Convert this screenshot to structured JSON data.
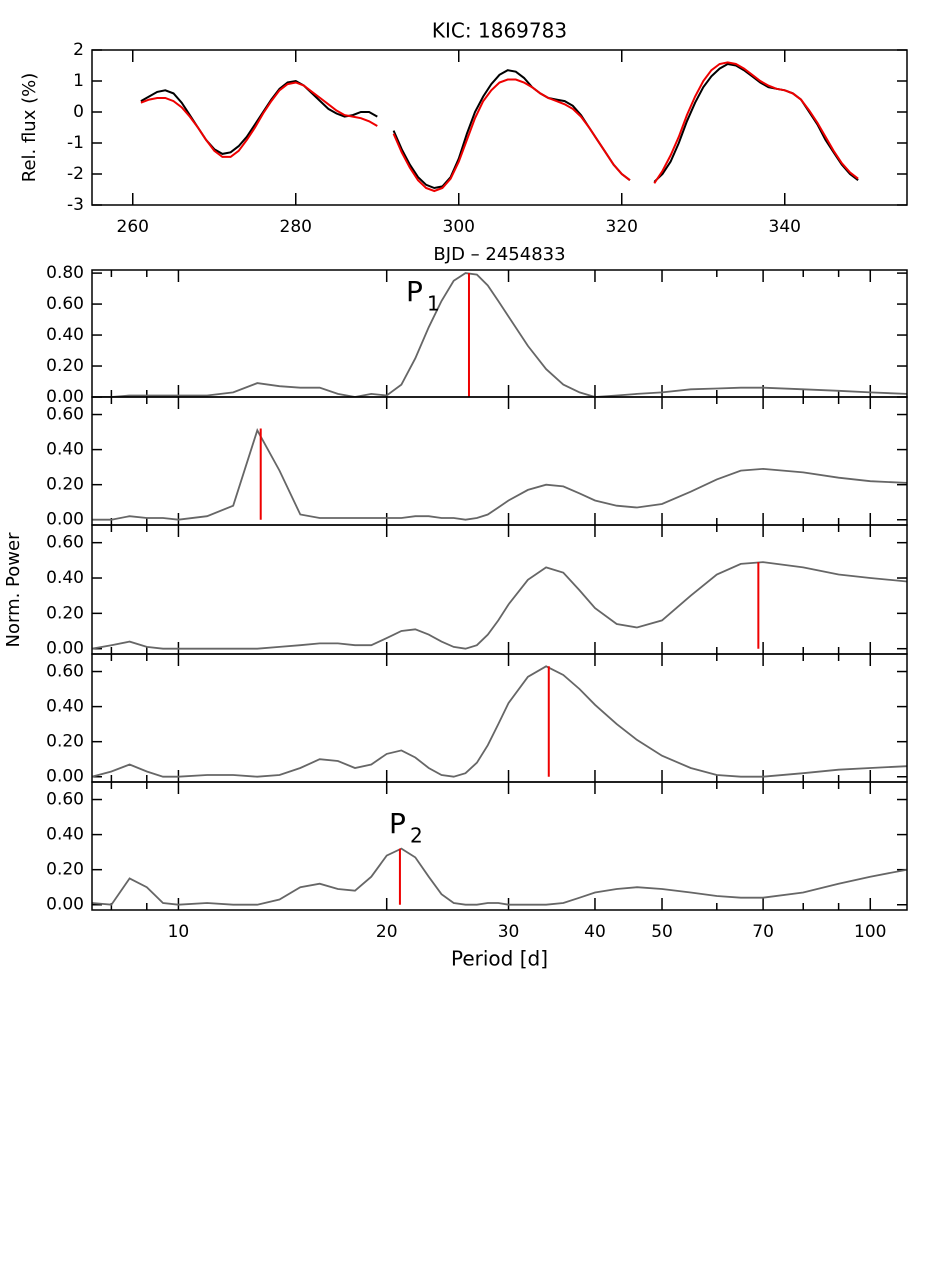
{
  "chart_data": [
    {
      "type": "line",
      "title": "KIC: 1869783",
      "xlabel": "BJD – 2454833",
      "ylabel": "Rel. flux (%)",
      "xlim": [
        255,
        355
      ],
      "xticks": [
        260,
        280,
        300,
        320,
        340
      ],
      "ylim": [
        -3,
        2
      ],
      "yticks": [
        -3,
        -2,
        -1,
        0,
        1,
        2
      ],
      "x": [
        261,
        262,
        263,
        264,
        265,
        266,
        267,
        268,
        269,
        270,
        271,
        272,
        273,
        274,
        275,
        276,
        277,
        278,
        279,
        280,
        281,
        282,
        283,
        284,
        285,
        286,
        287,
        288,
        289,
        290,
        291,
        292,
        293,
        294,
        295,
        296,
        297,
        298,
        299,
        300,
        301,
        302,
        303,
        304,
        305,
        306,
        307,
        308,
        309,
        310,
        311,
        312,
        313,
        314,
        315,
        316,
        317,
        318,
        319,
        320,
        321,
        322,
        323,
        324,
        325,
        326,
        327,
        328,
        329,
        330,
        331,
        332,
        333,
        334,
        335,
        336,
        337,
        338,
        339,
        340,
        341,
        342,
        343,
        344,
        345,
        346,
        347,
        348,
        349
      ],
      "series": [
        {
          "color": "#000000",
          "values": [
            0.35,
            0.5,
            0.65,
            0.7,
            0.6,
            0.3,
            -0.1,
            -0.5,
            -0.9,
            -1.2,
            -1.35,
            -1.3,
            -1.1,
            -0.8,
            -0.4,
            0.0,
            0.4,
            0.75,
            0.95,
            1.0,
            0.85,
            0.6,
            0.35,
            0.1,
            -0.05,
            -0.15,
            -0.1,
            0.0,
            0.0,
            -0.15,
            null,
            -0.6,
            -1.2,
            -1.7,
            -2.1,
            -2.35,
            -2.45,
            -2.4,
            -2.1,
            -1.5,
            -0.7,
            0.0,
            0.5,
            0.9,
            1.2,
            1.35,
            1.3,
            1.1,
            0.8,
            0.6,
            0.45,
            0.4,
            0.35,
            0.2,
            -0.1,
            -0.5,
            -0.9,
            -1.3,
            -1.7,
            -2.0,
            -2.2,
            null,
            null,
            -2.25,
            -2.0,
            -1.6,
            -1.0,
            -0.3,
            0.3,
            0.8,
            1.15,
            1.4,
            1.55,
            1.5,
            1.35,
            1.15,
            0.95,
            0.8,
            0.75,
            0.7,
            0.6,
            0.4,
            0.0,
            -0.4,
            -0.9,
            -1.3,
            -1.7,
            -2.0,
            -2.2
          ]
        },
        {
          "color": "#ee0000",
          "values": [
            0.3,
            0.4,
            0.45,
            0.45,
            0.35,
            0.15,
            -0.15,
            -0.5,
            -0.9,
            -1.25,
            -1.45,
            -1.45,
            -1.25,
            -0.9,
            -0.5,
            -0.05,
            0.35,
            0.7,
            0.9,
            0.95,
            0.85,
            0.65,
            0.45,
            0.25,
            0.05,
            -0.1,
            -0.15,
            -0.2,
            -0.3,
            -0.45,
            null,
            -0.7,
            -1.3,
            -1.8,
            -2.2,
            -2.45,
            -2.55,
            -2.45,
            -2.15,
            -1.6,
            -0.9,
            -0.2,
            0.35,
            0.7,
            0.95,
            1.05,
            1.05,
            0.95,
            0.8,
            0.6,
            0.45,
            0.35,
            0.25,
            0.1,
            -0.15,
            -0.5,
            -0.9,
            -1.3,
            -1.7,
            -2.0,
            -2.2,
            null,
            null,
            -2.3,
            -1.9,
            -1.4,
            -0.8,
            -0.1,
            0.5,
            1.0,
            1.35,
            1.55,
            1.6,
            1.55,
            1.4,
            1.2,
            1.0,
            0.85,
            0.75,
            0.7,
            0.6,
            0.4,
            0.05,
            -0.35,
            -0.8,
            -1.25,
            -1.65,
            -1.95,
            -2.15
          ]
        }
      ]
    },
    {
      "type": "line",
      "xlog": true,
      "xlim": [
        7.5,
        113
      ],
      "ylim": [
        0,
        0.82
      ],
      "yticks": [
        {
          "value": 0,
          "label": "0.00"
        },
        {
          "value": 0.2,
          "label": "0.20"
        },
        {
          "value": 0.4,
          "label": "0.40"
        },
        {
          "value": 0.6,
          "label": "0.60"
        },
        {
          "value": 0.8,
          "label": "0.80"
        }
      ],
      "annotation": {
        "text": "P",
        "subscript": "1"
      },
      "peak": {
        "x": 26.3,
        "y": 0.8,
        "color": "#ee0000"
      },
      "x": [
        7.5,
        8,
        8.5,
        9,
        9.5,
        10,
        11,
        12,
        13,
        14,
        15,
        16,
        17,
        18,
        19,
        20,
        21,
        22,
        23,
        24,
        25,
        26,
        27,
        28,
        29,
        30,
        32,
        34,
        36,
        38,
        40,
        43,
        46,
        50,
        55,
        60,
        65,
        70,
        80,
        90,
        100,
        113
      ],
      "series": [
        {
          "color": "#666666",
          "values": [
            0,
            0,
            0.01,
            0.01,
            0.01,
            0.01,
            0.01,
            0.03,
            0.09,
            0.07,
            0.06,
            0.06,
            0.02,
            0.0,
            0.02,
            0.01,
            0.08,
            0.25,
            0.45,
            0.62,
            0.75,
            0.8,
            0.79,
            0.72,
            0.62,
            0.52,
            0.33,
            0.18,
            0.08,
            0.03,
            0.0,
            0.01,
            0.02,
            0.03,
            0.05,
            0.055,
            0.06,
            0.06,
            0.05,
            0.04,
            0.03,
            0.02
          ]
        }
      ]
    },
    {
      "type": "line",
      "xlog": true,
      "xlim": [
        7.5,
        113
      ],
      "ylim": [
        -0.03,
        0.7
      ],
      "yticks": [
        {
          "value": 0,
          "label": "0.00"
        },
        {
          "value": 0.2,
          "label": "0.20"
        },
        {
          "value": 0.4,
          "label": "0.40"
        },
        {
          "value": 0.6,
          "label": "0.60"
        }
      ],
      "peak": {
        "x": 13.15,
        "y": 0.52,
        "color": "#ee0000"
      },
      "x": [
        7.5,
        8,
        8.5,
        9,
        9.5,
        10,
        11,
        12,
        13,
        14,
        15,
        16,
        17,
        18,
        19,
        20,
        21,
        22,
        23,
        24,
        25,
        26,
        27,
        28,
        29,
        30,
        32,
        34,
        36,
        38,
        40,
        43,
        46,
        50,
        55,
        60,
        65,
        70,
        80,
        90,
        100,
        113
      ],
      "series": [
        {
          "color": "#666666",
          "values": [
            0,
            0,
            0.02,
            0.01,
            0.01,
            0,
            0.02,
            0.08,
            0.51,
            0.28,
            0.03,
            0.01,
            0.01,
            0.01,
            0.01,
            0.01,
            0.01,
            0.02,
            0.02,
            0.01,
            0.01,
            0,
            0.01,
            0.03,
            0.07,
            0.11,
            0.17,
            0.2,
            0.19,
            0.15,
            0.11,
            0.08,
            0.07,
            0.09,
            0.16,
            0.23,
            0.28,
            0.29,
            0.27,
            0.24,
            0.22,
            0.21
          ]
        }
      ]
    },
    {
      "type": "line",
      "xlog": true,
      "xlim": [
        7.5,
        113
      ],
      "ylim": [
        -0.03,
        0.7
      ],
      "ylabel": "Norm. Power",
      "yticks": [
        {
          "value": 0,
          "label": "0.00"
        },
        {
          "value": 0.2,
          "label": "0.20"
        },
        {
          "value": 0.4,
          "label": "0.40"
        },
        {
          "value": 0.6,
          "label": "0.60"
        }
      ],
      "peak": {
        "x": 68.9,
        "y": 0.49,
        "color": "#ee0000"
      },
      "x": [
        7.5,
        8,
        8.5,
        9,
        9.5,
        10,
        11,
        12,
        13,
        14,
        15,
        16,
        17,
        18,
        19,
        20,
        21,
        22,
        23,
        24,
        25,
        26,
        27,
        28,
        29,
        30,
        32,
        34,
        36,
        38,
        40,
        43,
        46,
        50,
        55,
        60,
        65,
        70,
        80,
        90,
        100,
        113
      ],
      "series": [
        {
          "color": "#666666",
          "values": [
            0,
            0.02,
            0.04,
            0.01,
            0,
            0,
            0,
            0,
            0,
            0.01,
            0.02,
            0.03,
            0.03,
            0.02,
            0.02,
            0.06,
            0.1,
            0.11,
            0.08,
            0.04,
            0.01,
            0,
            0.02,
            0.08,
            0.16,
            0.25,
            0.39,
            0.46,
            0.43,
            0.33,
            0.23,
            0.14,
            0.12,
            0.16,
            0.3,
            0.42,
            0.48,
            0.49,
            0.46,
            0.42,
            0.4,
            0.38
          ]
        }
      ]
    },
    {
      "type": "line",
      "xlog": true,
      "xlim": [
        7.5,
        113
      ],
      "ylim": [
        -0.03,
        0.7
      ],
      "yticks": [
        {
          "value": 0,
          "label": "0.00"
        },
        {
          "value": 0.2,
          "label": "0.20"
        },
        {
          "value": 0.4,
          "label": "0.40"
        },
        {
          "value": 0.6,
          "label": "0.60"
        }
      ],
      "peak": {
        "x": 34.3,
        "y": 0.63,
        "color": "#ee0000"
      },
      "x": [
        7.5,
        8,
        8.5,
        9,
        9.5,
        10,
        11,
        12,
        13,
        14,
        15,
        16,
        17,
        18,
        19,
        20,
        21,
        22,
        23,
        24,
        25,
        26,
        27,
        28,
        29,
        30,
        32,
        34,
        36,
        38,
        40,
        43,
        46,
        50,
        55,
        60,
        65,
        70,
        80,
        90,
        100,
        113
      ],
      "series": [
        {
          "color": "#666666",
          "values": [
            0,
            0.03,
            0.07,
            0.03,
            0,
            0,
            0.01,
            0.01,
            0,
            0.01,
            0.05,
            0.1,
            0.09,
            0.05,
            0.07,
            0.13,
            0.15,
            0.11,
            0.05,
            0.01,
            0,
            0.02,
            0.08,
            0.18,
            0.3,
            0.42,
            0.57,
            0.63,
            0.58,
            0.5,
            0.41,
            0.3,
            0.21,
            0.12,
            0.05,
            0.01,
            0,
            0,
            0.02,
            0.04,
            0.05,
            0.06
          ]
        }
      ]
    },
    {
      "type": "line",
      "xlog": true,
      "xlim": [
        7.5,
        113
      ],
      "ylim": [
        -0.03,
        0.7
      ],
      "xlabel": "Period [d]",
      "yticks": [
        {
          "value": 0,
          "label": "0.00"
        },
        {
          "value": 0.2,
          "label": "0.20"
        },
        {
          "value": 0.4,
          "label": "0.40"
        },
        {
          "value": 0.6,
          "label": "0.60"
        }
      ],
      "xticks": [
        10,
        20,
        30,
        40,
        50,
        70,
        100
      ],
      "xminor": [
        8,
        9,
        60,
        80,
        90
      ],
      "annotation": {
        "text": "P",
        "subscript": "2"
      },
      "peak": {
        "x": 20.9,
        "y": 0.32,
        "color": "#ee0000"
      },
      "x": [
        7.5,
        8,
        8.5,
        9,
        9.5,
        10,
        11,
        12,
        13,
        14,
        15,
        16,
        17,
        18,
        19,
        20,
        21,
        22,
        23,
        24,
        25,
        26,
        27,
        28,
        29,
        30,
        32,
        34,
        36,
        38,
        40,
        43,
        46,
        50,
        55,
        60,
        65,
        70,
        80,
        90,
        100,
        113
      ],
      "series": [
        {
          "color": "#666666",
          "values": [
            0.01,
            0,
            0.15,
            0.1,
            0.01,
            0,
            0.01,
            0,
            0,
            0.03,
            0.1,
            0.12,
            0.09,
            0.08,
            0.16,
            0.28,
            0.32,
            0.27,
            0.16,
            0.06,
            0.01,
            0,
            0,
            0.01,
            0.01,
            0,
            0,
            0,
            0.01,
            0.04,
            0.07,
            0.09,
            0.1,
            0.09,
            0.07,
            0.05,
            0.04,
            0.04,
            0.07,
            0.12,
            0.16,
            0.2
          ]
        }
      ]
    }
  ]
}
